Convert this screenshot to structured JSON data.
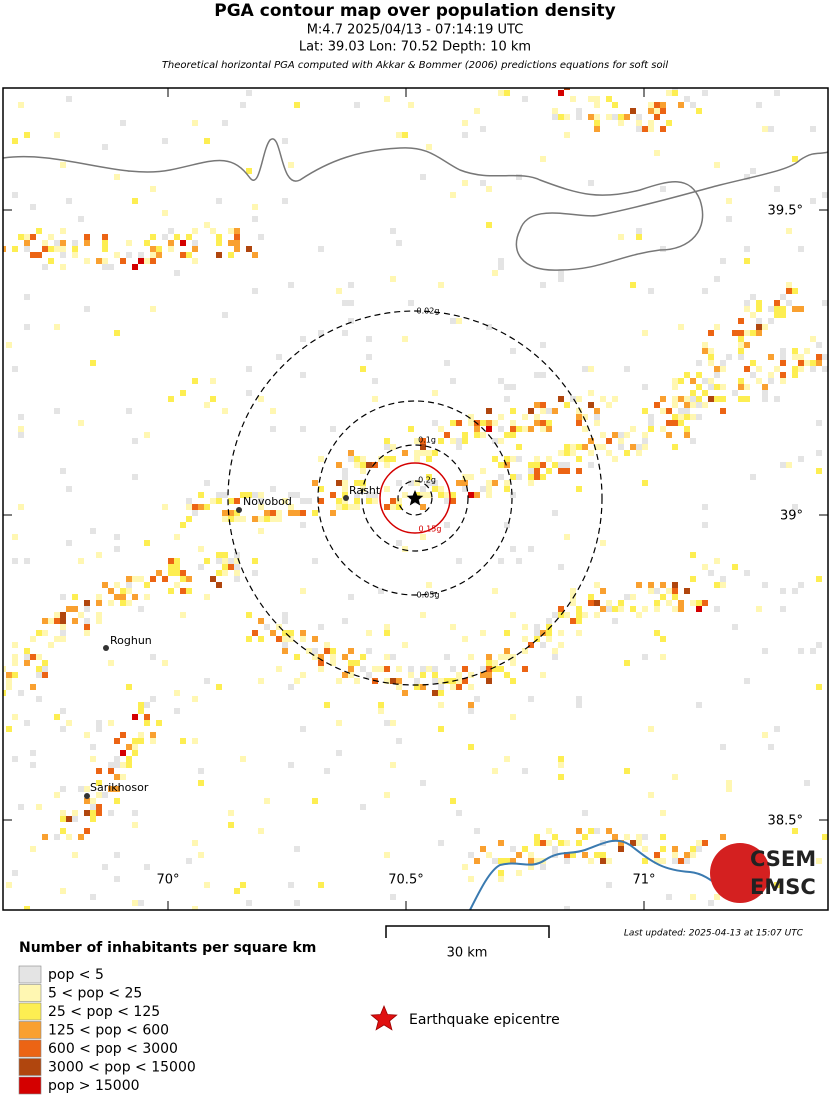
{
  "header": {
    "title": "PGA contour map over population density",
    "line1": "M:4.7 2025/04/13 - 07:14:19 UTC",
    "line2": "Lat: 39.03 Lon: 70.52 Depth: 10 km",
    "note": "Theoretical horizontal PGA computed with Akkar & Bommer (2006) predictions equations for soft soil"
  },
  "map": {
    "contours": [
      "0.02g",
      "0.05g",
      "0.1g",
      "0.2g",
      "0.15g"
    ],
    "cities": [
      "Novobod",
      "Rasht",
      "Roghun",
      "Sarikhosor"
    ],
    "latitude_labels": [
      "39.5°",
      "39°",
      "38.5°"
    ],
    "longitude_labels": [
      "70°",
      "70.5°",
      "71°"
    ],
    "scale": "30 km",
    "last_updated": "Last updated: 2025-04-13 at 15:07 UTC",
    "logo": [
      "CSEM",
      "EMSC"
    ]
  },
  "legend": {
    "title": "Number of inhabitants per square km",
    "items": [
      {
        "label": "pop < 5",
        "color": "#e4e4e4"
      },
      {
        "label": "5 < pop < 25",
        "color": "#fff7b2"
      },
      {
        "label": "25 < pop < 125",
        "color": "#fdee52"
      },
      {
        "label": "125 < pop < 600",
        "color": "#f9a030"
      },
      {
        "label": "600 < pop < 3000",
        "color": "#ec6414"
      },
      {
        "label": "3000 < pop < 15000",
        "color": "#b0460e"
      },
      {
        "label": "pop > 15000",
        "color": "#d40000"
      }
    ],
    "epicentre": "Earthquake epicentre"
  }
}
